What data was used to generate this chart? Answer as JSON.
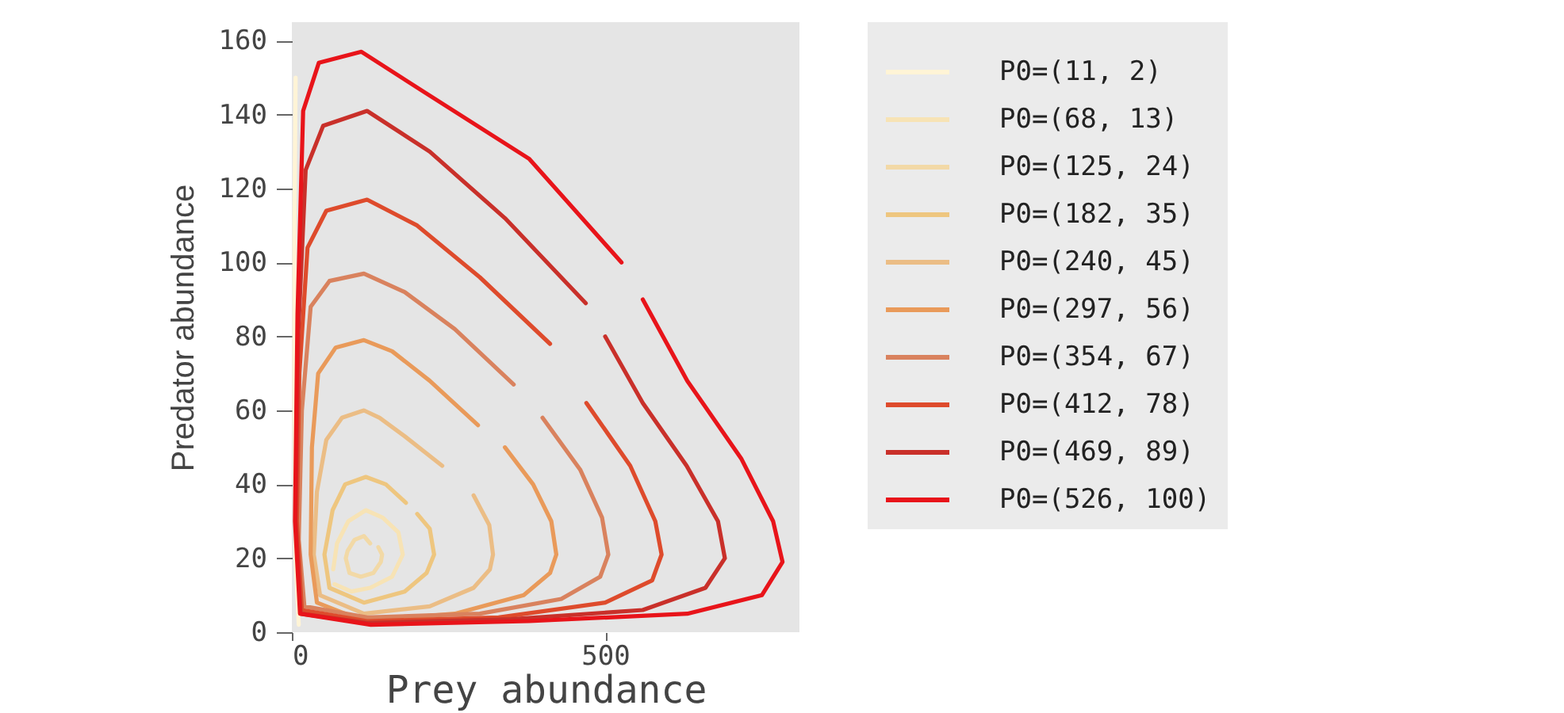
{
  "chart_data": {
    "type": "line",
    "xlabel": "Prey abundance",
    "ylabel": "Predator abundance",
    "xlim": [
      0,
      810
    ],
    "ylim": [
      0,
      165
    ],
    "xticks": [
      0,
      500
    ],
    "yticks": [
      0,
      20,
      40,
      60,
      80,
      100,
      120,
      140,
      160
    ],
    "legend": "right",
    "series": [
      {
        "name": "P0=(11, 2)",
        "color": "#fff4d6",
        "x": [
          11,
          6,
          4,
          4,
          6
        ],
        "values": [
          2,
          20,
          60,
          110,
          150
        ]
      },
      {
        "name": "P0=(68, 13)",
        "color": "#f7e3b5",
        "x": [
          68,
          95,
          125,
          160,
          177,
          170,
          145,
          118,
          90,
          72,
          66
        ],
        "values": [
          13,
          11,
          12,
          15,
          21,
          27,
          31,
          33,
          30,
          24,
          17
        ]
      },
      {
        "name": "P0=(125, 24)",
        "color": "#f2d9a6",
        "x": [
          125,
          115,
          100,
          89,
          86,
          92,
          110,
          130,
          142,
          144,
          138
        ],
        "values": [
          24,
          26,
          25,
          22,
          20,
          16,
          15,
          16,
          19,
          21,
          23
        ]
      },
      {
        "name": "P0=(182, 35)",
        "color": "#eec67f",
        "x": [
          182,
          150,
          118,
          85,
          65,
          52,
          60,
          115,
          180,
          215,
          227,
          220,
          200
        ],
        "values": [
          35,
          40,
          42,
          40,
          33,
          21,
          12,
          8,
          11,
          16,
          21,
          28,
          32
        ]
      },
      {
        "name": "P0=(240, 45)",
        "color": "#ebbd85",
        "x": [
          240,
          180,
          140,
          115,
          80,
          55,
          40,
          35,
          45,
          115,
          220,
          290,
          316,
          321,
          315,
          290
        ],
        "values": [
          45,
          53,
          58,
          60,
          58,
          52,
          38,
          21,
          10,
          5,
          7,
          12,
          17,
          21,
          29,
          37
        ]
      },
      {
        "name": "P0=(297, 56)",
        "color": "#e99a5a",
        "x": [
          297,
          220,
          160,
          115,
          70,
          42,
          32,
          30,
          40,
          115,
          260,
          370,
          412,
          422,
          414,
          385,
          340
        ],
        "values": [
          56,
          68,
          76,
          79,
          77,
          70,
          50,
          21,
          8,
          3,
          5,
          10,
          16,
          21,
          30,
          40,
          50
        ]
      },
      {
        "name": "P0=(354, 67)",
        "color": "#d9825e",
        "x": [
          354,
          260,
          180,
          115,
          60,
          30,
          16,
          11,
          20,
          120,
          300,
          430,
          492,
          505,
          495,
          460,
          400
        ],
        "values": [
          67,
          82,
          92,
          97,
          95,
          88,
          60,
          25,
          7,
          4,
          5,
          9,
          15,
          21,
          31,
          44,
          58
        ]
      },
      {
        "name": "P0=(412, 78)",
        "color": "#de4b2c",
        "x": [
          412,
          300,
          200,
          120,
          55,
          25,
          12,
          8,
          16,
          120,
          330,
          500,
          575,
          590,
          580,
          540,
          470
        ],
        "values": [
          78,
          96,
          110,
          117,
          114,
          104,
          70,
          30,
          6,
          3,
          4,
          8,
          14,
          21,
          30,
          45,
          62
        ]
      },
      {
        "name": "P0=(469, 89)",
        "color": "#c9302a",
        "x": [
          469,
          340,
          220,
          120,
          50,
          22,
          10,
          6,
          14,
          120,
          350,
          560,
          660,
          691,
          680,
          630,
          560,
          500
        ],
        "values": [
          89,
          112,
          130,
          141,
          137,
          125,
          80,
          30,
          5,
          2.5,
          3.5,
          6,
          12,
          20,
          30,
          45,
          62,
          80
        ]
      },
      {
        "name": "P0=(526, 100)",
        "color": "#e8141a",
        "x": [
          526,
          379,
          212,
          111,
          43,
          18,
          9,
          5,
          13,
          126,
          379,
          631,
          750,
          783,
          768,
          717,
          631,
          560
        ],
        "values": [
          100,
          128,
          146,
          157,
          154,
          141,
          86,
          30,
          5,
          2,
          3,
          5,
          10,
          19,
          30,
          47,
          68,
          90
        ]
      }
    ]
  }
}
